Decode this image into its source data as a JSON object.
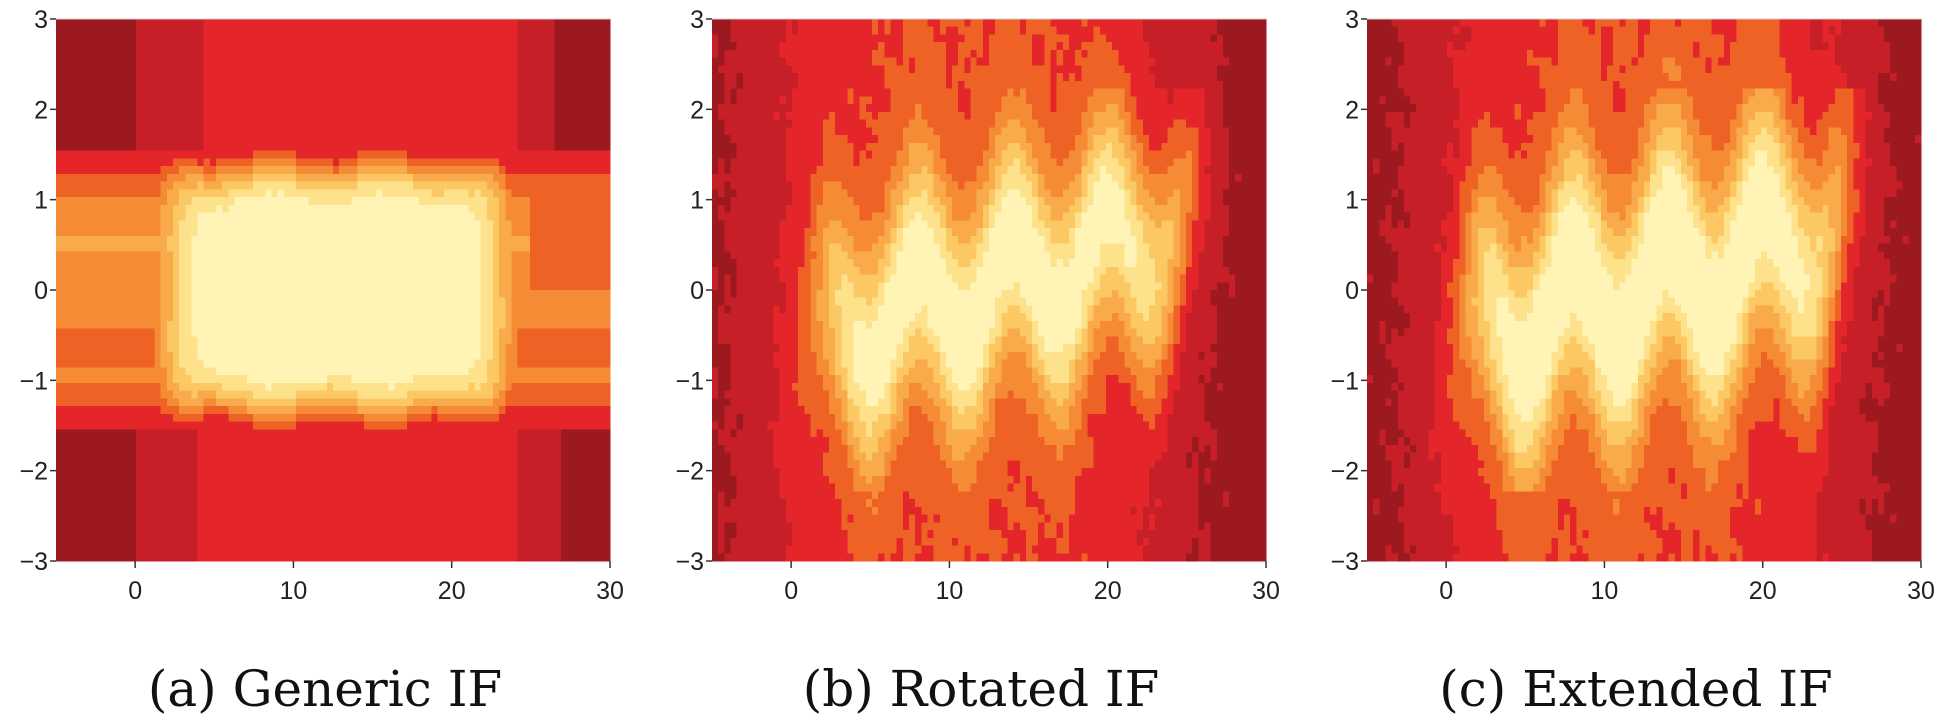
{
  "chart_data": [
    {
      "type": "heatmap",
      "caption": "(a) Generic IF",
      "variant": "generic",
      "xlim": [
        -5,
        30
      ],
      "ylim": [
        -3,
        3
      ],
      "xticks": [
        "0",
        "10",
        "20",
        "30"
      ],
      "xtick_values": [
        0,
        10,
        20,
        30
      ],
      "yticks": [
        "−3",
        "−2",
        "−1",
        "0",
        "1",
        "2",
        "3"
      ],
      "ytick_values": [
        -3,
        -2,
        -1,
        0,
        1,
        2,
        3
      ]
    },
    {
      "type": "heatmap",
      "caption": "(b) Rotated IF",
      "variant": "rotated",
      "xlim": [
        -5,
        30
      ],
      "ylim": [
        -3,
        3
      ],
      "xticks": [
        "0",
        "10",
        "20",
        "30"
      ],
      "xtick_values": [
        0,
        10,
        20,
        30
      ],
      "yticks": [
        "−3",
        "−2",
        "−1",
        "0",
        "1",
        "2",
        "3"
      ],
      "ytick_values": [
        -3,
        -2,
        -1,
        0,
        1,
        2,
        3
      ]
    },
    {
      "type": "heatmap",
      "caption": "(c) Extended IF",
      "variant": "extended",
      "xlim": [
        -5,
        30
      ],
      "ylim": [
        -3,
        3
      ],
      "xticks": [
        "0",
        "10",
        "20",
        "30"
      ],
      "xtick_values": [
        0,
        10,
        20,
        30
      ],
      "yticks": [
        "−3",
        "−2",
        "−1",
        "0",
        "1",
        "2",
        "3"
      ],
      "ytick_values": [
        -3,
        -2,
        -1,
        0,
        1,
        2,
        3
      ]
    }
  ],
  "colormap": [
    "#9c1a1f",
    "#c71f27",
    "#e4252a",
    "#ef6225",
    "#f58c35",
    "#f9aa4a",
    "#fcc864",
    "#fee28b",
    "#fff3b6"
  ]
}
